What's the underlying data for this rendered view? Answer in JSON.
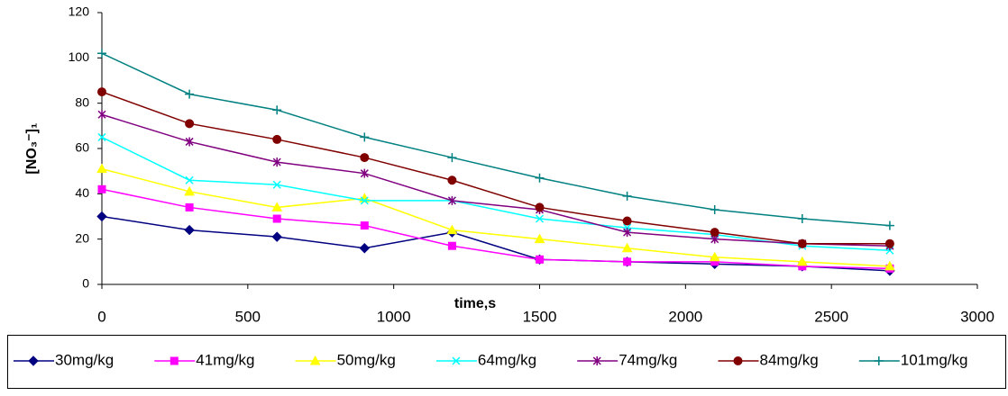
{
  "chart_data": {
    "type": "line",
    "xlabel": "time,s",
    "ylabel": "[NO₃⁻]₁",
    "x": [
      0,
      300,
      600,
      900,
      1200,
      1500,
      1800,
      2100,
      2400,
      2700
    ],
    "xlim": [
      0,
      3000
    ],
    "xticks": [
      0,
      500,
      1000,
      1500,
      2000,
      2500,
      3000
    ],
    "ylim": [
      0,
      120
    ],
    "yticks": [
      0,
      20,
      40,
      60,
      80,
      100,
      120
    ],
    "series": [
      {
        "name": "30mg/kg",
        "color": "#000080",
        "marker": "diamond",
        "values": [
          30,
          24,
          21,
          16,
          23,
          11,
          10,
          9,
          8,
          6
        ]
      },
      {
        "name": "41mg/kg",
        "color": "#ff00ff",
        "marker": "square",
        "values": [
          42,
          34,
          29,
          26,
          17,
          11,
          10,
          10,
          8,
          7
        ]
      },
      {
        "name": "50mg/kg",
        "color": "#ffff00",
        "marker": "triangle",
        "values": [
          51,
          41,
          34,
          38,
          24,
          20,
          16,
          12,
          10,
          8
        ]
      },
      {
        "name": "64mg/kg",
        "color": "#00ffff",
        "marker": "x",
        "values": [
          65,
          46,
          44,
          37,
          37,
          29,
          25,
          22,
          17,
          15
        ]
      },
      {
        "name": "74mg/kg",
        "color": "#800080",
        "marker": "star",
        "values": [
          75,
          63,
          54,
          49,
          37,
          33,
          23,
          20,
          18,
          17
        ]
      },
      {
        "name": "84mg/kg",
        "color": "#800000",
        "marker": "circle",
        "values": [
          85,
          71,
          64,
          56,
          46,
          34,
          28,
          23,
          18,
          18
        ]
      },
      {
        "name": "101mg/kg",
        "color": "#008080",
        "marker": "plus",
        "values": [
          102,
          84,
          77,
          65,
          56,
          47,
          39,
          33,
          29,
          26
        ]
      }
    ]
  }
}
